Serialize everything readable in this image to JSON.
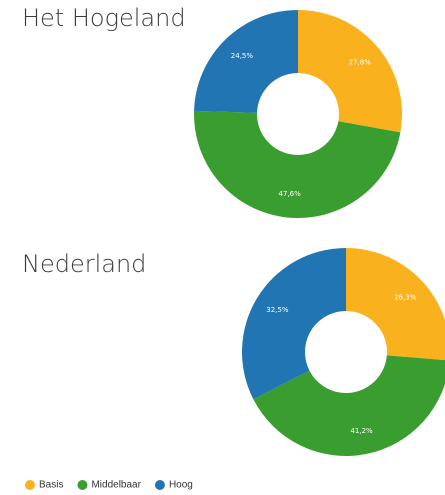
{
  "chart_data": [
    {
      "type": "donut",
      "title": "Het Hogeland",
      "categories": [
        "Basis",
        "Middelbaar",
        "Hoog"
      ],
      "values": [
        27.8,
        47.6,
        24.5
      ],
      "value_labels": [
        "27,8%",
        "47,6%",
        "24,5%"
      ],
      "colors": [
        "#f9b21d",
        "#3a9d2f",
        "#2175b3"
      ]
    },
    {
      "type": "donut",
      "title": "Nederland",
      "categories": [
        "Basis",
        "Middelbaar",
        "Hoog"
      ],
      "values": [
        26.3,
        41.2,
        32.5
      ],
      "value_labels": [
        "26,3%",
        "41,2%",
        "32,5%"
      ],
      "colors": [
        "#f9b21d",
        "#3a9d2f",
        "#2175b3"
      ]
    }
  ]
}
